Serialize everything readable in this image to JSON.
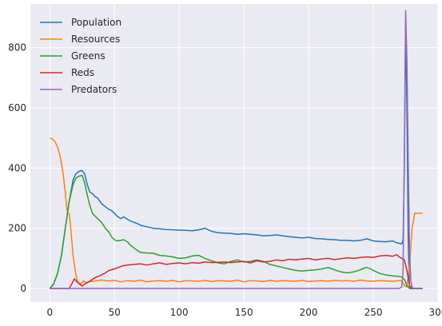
{
  "chart_data": {
    "type": "line",
    "title": "",
    "xlabel": "",
    "ylabel": "",
    "xlim": [
      -15,
      300
    ],
    "ylim": [
      -45,
      945
    ],
    "xticks": [
      0,
      50,
      100,
      150,
      200,
      250,
      300
    ],
    "yticks": [
      0,
      200,
      400,
      600,
      800
    ],
    "xtick_labels": [
      "0",
      "50",
      "100",
      "150",
      "200",
      "250",
      "300"
    ],
    "ytick_labels": [
      "0",
      "200",
      "400",
      "600",
      "800"
    ],
    "grid": true,
    "background": "#eaeaf2",
    "legend_position": "top-left",
    "series": [
      {
        "name": "Population",
        "color": "#1f77b4",
        "points": [
          [
            0,
            0
          ],
          [
            3,
            15
          ],
          [
            6,
            50
          ],
          [
            9,
            110
          ],
          [
            12,
            200
          ],
          [
            15,
            290
          ],
          [
            18,
            360
          ],
          [
            20,
            380
          ],
          [
            22,
            388
          ],
          [
            25,
            392
          ],
          [
            27,
            380
          ],
          [
            29,
            345
          ],
          [
            31,
            320
          ],
          [
            33,
            315
          ],
          [
            35,
            305
          ],
          [
            37,
            300
          ],
          [
            40,
            282
          ],
          [
            42,
            275
          ],
          [
            44,
            268
          ],
          [
            46,
            262
          ],
          [
            48,
            258
          ],
          [
            50,
            250
          ],
          [
            52,
            240
          ],
          [
            55,
            232
          ],
          [
            57,
            238
          ],
          [
            60,
            230
          ],
          [
            62,
            225
          ],
          [
            65,
            220
          ],
          [
            68,
            215
          ],
          [
            70,
            210
          ],
          [
            75,
            205
          ],
          [
            80,
            200
          ],
          [
            85,
            198
          ],
          [
            90,
            196
          ],
          [
            95,
            195
          ],
          [
            100,
            194
          ],
          [
            105,
            193
          ],
          [
            110,
            192
          ],
          [
            115,
            195
          ],
          [
            120,
            200
          ],
          [
            125,
            190
          ],
          [
            130,
            185
          ],
          [
            135,
            184
          ],
          [
            140,
            183
          ],
          [
            145,
            180
          ],
          [
            150,
            182
          ],
          [
            155,
            180
          ],
          [
            160,
            178
          ],
          [
            165,
            175
          ],
          [
            170,
            176
          ],
          [
            175,
            178
          ],
          [
            180,
            175
          ],
          [
            185,
            172
          ],
          [
            190,
            170
          ],
          [
            195,
            168
          ],
          [
            200,
            170
          ],
          [
            205,
            166
          ],
          [
            210,
            165
          ],
          [
            215,
            163
          ],
          [
            220,
            162
          ],
          [
            225,
            160
          ],
          [
            230,
            160
          ],
          [
            235,
            158
          ],
          [
            240,
            160
          ],
          [
            245,
            165
          ],
          [
            250,
            158
          ],
          [
            255,
            156
          ],
          [
            260,
            155
          ],
          [
            265,
            158
          ],
          [
            268,
            152
          ],
          [
            270,
            150
          ],
          [
            272,
            148
          ],
          [
            273,
            160
          ],
          [
            274,
            400
          ],
          [
            275,
            880
          ],
          [
            276,
            600
          ],
          [
            277,
            150
          ],
          [
            278,
            0
          ],
          [
            280,
            0
          ],
          [
            288,
            0
          ]
        ]
      },
      {
        "name": "Resources",
        "color": "#ff7f0e",
        "points": [
          [
            0,
            500
          ],
          [
            2,
            497
          ],
          [
            4,
            488
          ],
          [
            6,
            470
          ],
          [
            8,
            440
          ],
          [
            10,
            390
          ],
          [
            12,
            320
          ],
          [
            13,
            270
          ],
          [
            14,
            250
          ],
          [
            15,
            248
          ],
          [
            16,
            210
          ],
          [
            17,
            160
          ],
          [
            18,
            110
          ],
          [
            19,
            80
          ],
          [
            20,
            50
          ],
          [
            21,
            30
          ],
          [
            22,
            20
          ],
          [
            24,
            15
          ],
          [
            26,
            25
          ],
          [
            28,
            20
          ],
          [
            30,
            22
          ],
          [
            35,
            25
          ],
          [
            40,
            28
          ],
          [
            45,
            25
          ],
          [
            50,
            27
          ],
          [
            55,
            22
          ],
          [
            60,
            26
          ],
          [
            65,
            24
          ],
          [
            70,
            28
          ],
          [
            75,
            22
          ],
          [
            80,
            25
          ],
          [
            85,
            26
          ],
          [
            90,
            24
          ],
          [
            95,
            27
          ],
          [
            100,
            22
          ],
          [
            105,
            26
          ],
          [
            110,
            25
          ],
          [
            115,
            24
          ],
          [
            120,
            27
          ],
          [
            125,
            23
          ],
          [
            130,
            26
          ],
          [
            135,
            25
          ],
          [
            140,
            24
          ],
          [
            145,
            28
          ],
          [
            150,
            22
          ],
          [
            155,
            26
          ],
          [
            160,
            25
          ],
          [
            165,
            23
          ],
          [
            170,
            27
          ],
          [
            175,
            24
          ],
          [
            180,
            26
          ],
          [
            185,
            25
          ],
          [
            190,
            24
          ],
          [
            195,
            27
          ],
          [
            200,
            23
          ],
          [
            205,
            25
          ],
          [
            210,
            26
          ],
          [
            215,
            24
          ],
          [
            220,
            27
          ],
          [
            225,
            25
          ],
          [
            230,
            26
          ],
          [
            235,
            24
          ],
          [
            240,
            28
          ],
          [
            245,
            25
          ],
          [
            250,
            24
          ],
          [
            255,
            26
          ],
          [
            260,
            25
          ],
          [
            265,
            24
          ],
          [
            270,
            26
          ],
          [
            272,
            25
          ],
          [
            274,
            10
          ],
          [
            276,
            5
          ],
          [
            278,
            80
          ],
          [
            280,
            200
          ],
          [
            282,
            250
          ],
          [
            288,
            250
          ]
        ]
      },
      {
        "name": "Greens",
        "color": "#2ca02c",
        "points": [
          [
            0,
            0
          ],
          [
            3,
            15
          ],
          [
            6,
            50
          ],
          [
            9,
            110
          ],
          [
            12,
            200
          ],
          [
            15,
            290
          ],
          [
            18,
            345
          ],
          [
            20,
            365
          ],
          [
            22,
            372
          ],
          [
            25,
            376
          ],
          [
            27,
            350
          ],
          [
            29,
            310
          ],
          [
            31,
            275
          ],
          [
            33,
            250
          ],
          [
            35,
            240
          ],
          [
            37,
            232
          ],
          [
            40,
            220
          ],
          [
            43,
            200
          ],
          [
            46,
            185
          ],
          [
            48,
            170
          ],
          [
            50,
            162
          ],
          [
            52,
            158
          ],
          [
            55,
            160
          ],
          [
            57,
            162
          ],
          [
            60,
            155
          ],
          [
            62,
            145
          ],
          [
            65,
            135
          ],
          [
            68,
            125
          ],
          [
            70,
            120
          ],
          [
            75,
            118
          ],
          [
            80,
            117
          ],
          [
            85,
            110
          ],
          [
            90,
            108
          ],
          [
            95,
            105
          ],
          [
            100,
            100
          ],
          [
            105,
            102
          ],
          [
            110,
            108
          ],
          [
            115,
            110
          ],
          [
            120,
            100
          ],
          [
            125,
            92
          ],
          [
            130,
            85
          ],
          [
            135,
            82
          ],
          [
            140,
            90
          ],
          [
            145,
            95
          ],
          [
            150,
            88
          ],
          [
            155,
            90
          ],
          [
            160,
            95
          ],
          [
            165,
            90
          ],
          [
            170,
            80
          ],
          [
            175,
            75
          ],
          [
            180,
            70
          ],
          [
            185,
            65
          ],
          [
            190,
            60
          ],
          [
            195,
            58
          ],
          [
            200,
            60
          ],
          [
            205,
            62
          ],
          [
            210,
            65
          ],
          [
            215,
            70
          ],
          [
            220,
            62
          ],
          [
            225,
            55
          ],
          [
            230,
            52
          ],
          [
            235,
            55
          ],
          [
            240,
            62
          ],
          [
            243,
            68
          ],
          [
            245,
            70
          ],
          [
            248,
            65
          ],
          [
            250,
            60
          ],
          [
            255,
            50
          ],
          [
            260,
            45
          ],
          [
            265,
            42
          ],
          [
            270,
            40
          ],
          [
            272,
            38
          ],
          [
            274,
            30
          ],
          [
            276,
            10
          ],
          [
            278,
            0
          ],
          [
            280,
            0
          ],
          [
            288,
            0
          ]
        ]
      },
      {
        "name": "Reds",
        "color": "#d62728",
        "points": [
          [
            0,
            0
          ],
          [
            5,
            0
          ],
          [
            10,
            0
          ],
          [
            15,
            0
          ],
          [
            17,
            15
          ],
          [
            19,
            32
          ],
          [
            21,
            22
          ],
          [
            23,
            15
          ],
          [
            25,
            8
          ],
          [
            27,
            15
          ],
          [
            30,
            22
          ],
          [
            33,
            30
          ],
          [
            36,
            38
          ],
          [
            40,
            45
          ],
          [
            43,
            52
          ],
          [
            46,
            60
          ],
          [
            50,
            65
          ],
          [
            53,
            70
          ],
          [
            56,
            75
          ],
          [
            60,
            78
          ],
          [
            65,
            80
          ],
          [
            70,
            82
          ],
          [
            75,
            78
          ],
          [
            80,
            82
          ],
          [
            85,
            85
          ],
          [
            90,
            80
          ],
          [
            95,
            83
          ],
          [
            100,
            85
          ],
          [
            105,
            82
          ],
          [
            110,
            86
          ],
          [
            115,
            84
          ],
          [
            120,
            88
          ],
          [
            125,
            86
          ],
          [
            130,
            87
          ],
          [
            135,
            88
          ],
          [
            140,
            86
          ],
          [
            145,
            88
          ],
          [
            150,
            90
          ],
          [
            155,
            85
          ],
          [
            160,
            92
          ],
          [
            165,
            88
          ],
          [
            170,
            90
          ],
          [
            175,
            95
          ],
          [
            180,
            92
          ],
          [
            185,
            97
          ],
          [
            190,
            95
          ],
          [
            195,
            98
          ],
          [
            200,
            100
          ],
          [
            205,
            95
          ],
          [
            210,
            98
          ],
          [
            215,
            100
          ],
          [
            220,
            96
          ],
          [
            225,
            99
          ],
          [
            230,
            102
          ],
          [
            235,
            100
          ],
          [
            240,
            103
          ],
          [
            245,
            105
          ],
          [
            250,
            103
          ],
          [
            255,
            108
          ],
          [
            260,
            110
          ],
          [
            265,
            107
          ],
          [
            268,
            112
          ],
          [
            270,
            105
          ],
          [
            272,
            100
          ],
          [
            274,
            95
          ],
          [
            276,
            60
          ],
          [
            278,
            10
          ],
          [
            280,
            0
          ],
          [
            288,
            0
          ]
        ]
      },
      {
        "name": "Predators",
        "color": "#9467bd",
        "points": [
          [
            0,
            0
          ],
          [
            50,
            0
          ],
          [
            100,
            0
          ],
          [
            150,
            0
          ],
          [
            200,
            0
          ],
          [
            250,
            0
          ],
          [
            270,
            0
          ],
          [
            272,
            5
          ],
          [
            273,
            60
          ],
          [
            274,
            450
          ],
          [
            275,
            923
          ],
          [
            276,
            760
          ],
          [
            277,
            420
          ],
          [
            278,
            130
          ],
          [
            279,
            25
          ],
          [
            280,
            3
          ],
          [
            282,
            0
          ],
          [
            288,
            0
          ]
        ]
      }
    ]
  }
}
